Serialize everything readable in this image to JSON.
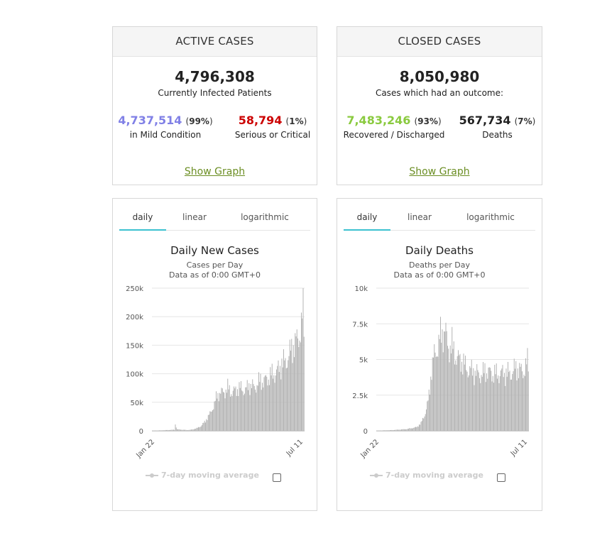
{
  "active": {
    "header": "ACTIVE CASES",
    "total": "4,796,308",
    "total_label": "Currently Infected Patients",
    "mild_value": "4,737,514",
    "mild_pct": "99%",
    "mild_label": "in Mild Condition",
    "critical_value": "58,794",
    "critical_pct": "1%",
    "critical_label": "Serious or Critical",
    "show_graph": "Show Graph"
  },
  "closed": {
    "header": "CLOSED CASES",
    "total": "8,050,980",
    "total_label": "Cases which had an outcome:",
    "recovered_value": "7,483,246",
    "recovered_pct": "93%",
    "recovered_label": "Recovered / Discharged",
    "deaths_value": "567,734",
    "deaths_pct": "7%",
    "deaths_label": "Deaths",
    "show_graph": "Show Graph"
  },
  "colors": {
    "mild": "#8080e6",
    "critical": "#cc0000",
    "recovered": "#8aca3f",
    "link": "#6b8e23",
    "tab_active": "#3cc1d0",
    "bar": "#b3b3b3"
  },
  "tabs": [
    "daily",
    "linear",
    "logarithmic"
  ],
  "legend_label": "7-day moving average",
  "chart_data": [
    {
      "type": "bar",
      "title": "Daily New Cases",
      "subtitle": "Cases per Day",
      "subtitle2": "Data as of 0:00 GMT+0",
      "x_tick_labels": [
        "Jan 22",
        "Jul 11"
      ],
      "y_tick_labels": [
        "0",
        "50k",
        "100k",
        "150k",
        "200k",
        "250k"
      ],
      "ylim": [
        0,
        250000
      ],
      "grid": true,
      "anchors": [
        [
          0,
          500
        ],
        [
          10,
          900
        ],
        [
          20,
          1800
        ],
        [
          25,
          2000
        ],
        [
          26,
          13000
        ],
        [
          28,
          3000
        ],
        [
          35,
          2000
        ],
        [
          40,
          1500
        ],
        [
          45,
          2500
        ],
        [
          50,
          5000
        ],
        [
          55,
          10000
        ],
        [
          60,
          20000
        ],
        [
          65,
          35000
        ],
        [
          70,
          55000
        ],
        [
          73,
          70000
        ],
        [
          76,
          78000
        ],
        [
          80,
          80000
        ],
        [
          85,
          84000
        ],
        [
          90,
          80000
        ],
        [
          95,
          84000
        ],
        [
          100,
          86000
        ],
        [
          105,
          84000
        ],
        [
          110,
          92000
        ],
        [
          115,
          90000
        ],
        [
          120,
          98000
        ],
        [
          125,
          102000
        ],
        [
          130,
          108000
        ],
        [
          135,
          112000
        ],
        [
          140,
          122000
        ],
        [
          145,
          132000
        ],
        [
          150,
          142000
        ],
        [
          155,
          158000
        ],
        [
          160,
          175000
        ],
        [
          165,
          195000
        ],
        [
          168,
          212000
        ],
        [
          170,
          236000
        ],
        [
          171,
          210000
        ]
      ]
    },
    {
      "type": "bar",
      "title": "Daily Deaths",
      "subtitle": "Deaths per Day",
      "subtitle2": "Data as of 0:00 GMT+0",
      "x_tick_labels": [
        "Jan 22",
        "Jul 11"
      ],
      "y_tick_labels": [
        "0",
        "2.5k",
        "5k",
        "7.5k",
        "10k"
      ],
      "ylim": [
        0,
        10000
      ],
      "grid": true,
      "anchors": [
        [
          0,
          20
        ],
        [
          15,
          50
        ],
        [
          25,
          90
        ],
        [
          35,
          150
        ],
        [
          45,
          300
        ],
        [
          50,
          600
        ],
        [
          55,
          1500
        ],
        [
          58,
          2400
        ],
        [
          60,
          3500
        ],
        [
          62,
          5000
        ],
        [
          65,
          6200
        ],
        [
          70,
          7200
        ],
        [
          74,
          7800
        ],
        [
          77,
          8400
        ],
        [
          80,
          7000
        ],
        [
          85,
          6700
        ],
        [
          90,
          6100
        ],
        [
          95,
          5700
        ],
        [
          100,
          5200
        ],
        [
          105,
          5000
        ],
        [
          110,
          4700
        ],
        [
          115,
          4700
        ],
        [
          120,
          4600
        ],
        [
          125,
          4900
        ],
        [
          130,
          4700
        ],
        [
          135,
          4500
        ],
        [
          140,
          4800
        ],
        [
          145,
          4600
        ],
        [
          150,
          4700
        ],
        [
          155,
          5000
        ],
        [
          160,
          5000
        ],
        [
          165,
          4900
        ],
        [
          170,
          5400
        ],
        [
          171,
          5300
        ]
      ]
    }
  ]
}
